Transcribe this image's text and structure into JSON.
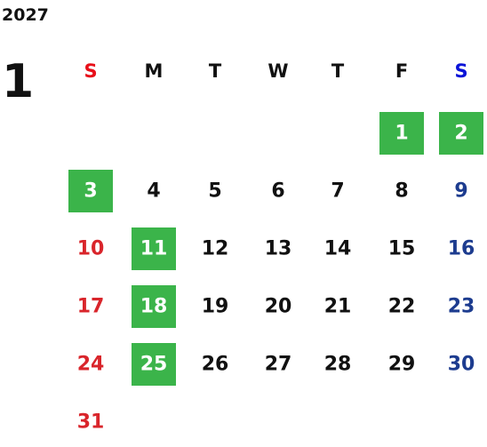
{
  "year": "2027",
  "month": "1",
  "weekdays": [
    "S",
    "M",
    "T",
    "W",
    "T",
    "F",
    "S"
  ],
  "weeks": [
    [
      null,
      null,
      null,
      null,
      null,
      {
        "day": 1,
        "holiday": true
      },
      {
        "day": 2,
        "holiday": true
      }
    ],
    [
      {
        "day": 3,
        "holiday": true
      },
      {
        "day": 4,
        "holiday": false
      },
      {
        "day": 5,
        "holiday": false
      },
      {
        "day": 6,
        "holiday": false
      },
      {
        "day": 7,
        "holiday": false
      },
      {
        "day": 8,
        "holiday": false
      },
      {
        "day": 9,
        "holiday": false
      }
    ],
    [
      {
        "day": 10,
        "holiday": false
      },
      {
        "day": 11,
        "holiday": true
      },
      {
        "day": 12,
        "holiday": false
      },
      {
        "day": 13,
        "holiday": false
      },
      {
        "day": 14,
        "holiday": false
      },
      {
        "day": 15,
        "holiday": false
      },
      {
        "day": 16,
        "holiday": false
      }
    ],
    [
      {
        "day": 17,
        "holiday": false
      },
      {
        "day": 18,
        "holiday": true
      },
      {
        "day": 19,
        "holiday": false
      },
      {
        "day": 20,
        "holiday": false
      },
      {
        "day": 21,
        "holiday": false
      },
      {
        "day": 22,
        "holiday": false
      },
      {
        "day": 23,
        "holiday": false
      }
    ],
    [
      {
        "day": 24,
        "holiday": false
      },
      {
        "day": 25,
        "holiday": true
      },
      {
        "day": 26,
        "holiday": false
      },
      {
        "day": 27,
        "holiday": false
      },
      {
        "day": 28,
        "holiday": false
      },
      {
        "day": 29,
        "holiday": false
      },
      {
        "day": 30,
        "holiday": false
      }
    ],
    [
      {
        "day": 31,
        "holiday": false
      },
      null,
      null,
      null,
      null,
      null,
      null
    ]
  ]
}
